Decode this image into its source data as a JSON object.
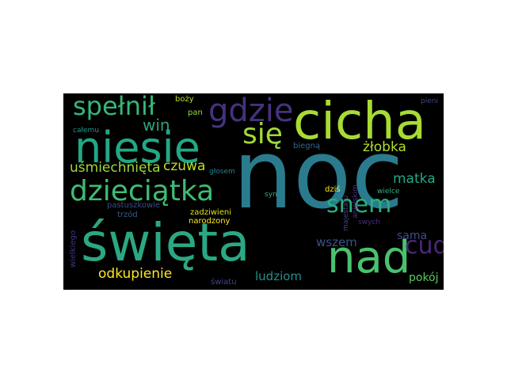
{
  "colors": {
    "page_background": "#ffffff",
    "cloud_background": "#000000",
    "palette": [
      "#440154",
      "#46327e",
      "#365c8d",
      "#277f8e",
      "#1fa187",
      "#4ac16d",
      "#a0da39",
      "#fde725"
    ]
  },
  "words": {
    "noc": "noc",
    "cicha": "cicha",
    "swieta": "święta",
    "niesie": "niesie",
    "nad": "nad",
    "dzieciatka": "dzieciątka",
    "gdzie": "gdzie",
    "spelnil": "spełnił",
    "sie": "się",
    "snem": "snem",
    "cud": "cud",
    "win": "win",
    "usmiechnieta": "uśmiechnięta",
    "zlobka": "żłobka",
    "czuwa": "czuwa",
    "matka": "matka",
    "odkupienie": "odkupienie",
    "ludziom": "ludziom",
    "wszem": "wszem",
    "sama": "sama",
    "pokoj": "pokój",
    "boży": "boży",
    "pan": "pan",
    "calemu": "całemu",
    "pieni": "pieni",
    "biegna": "biegną",
    "glosem": "głosem",
    "syn": "syn",
    "dzis": "dziś",
    "wielce": "wielce",
    "pastuszkowie": "pastuszkowie",
    "zadziwieni": "zadziwieni",
    "trzod": "trzód",
    "narodzony": "narodzony",
    "swych": "swych",
    "swiatu": "światu",
    "majestatu": "majestatu",
    "anielskim": "anielskim",
    "wielkiego": "wielkiego"
  }
}
